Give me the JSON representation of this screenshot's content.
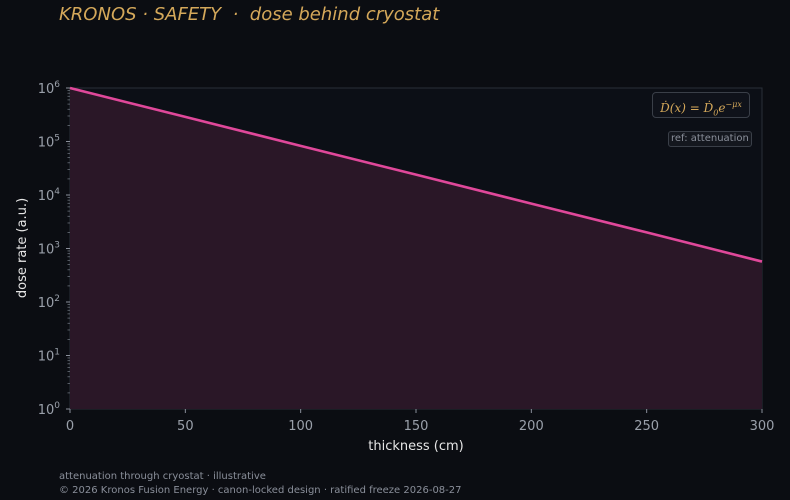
{
  "title": "KRONOS · SAFETY  ·  dose behind cryostat",
  "footer": {
    "line1": "attenuation through cryostat · illustrative",
    "line2": "© 2026 Kronos Fusion Energy · canon-locked design · ratified freeze 2026-08-27"
  },
  "annotations": {
    "equation": "Ḋ(x) = Ḋ₀e^(−μx)",
    "ref": "ref: attenuation"
  },
  "colors": {
    "background": "#0b0d12",
    "plot_background": "#0c0f16",
    "line": "#e0489a",
    "fill": "#2a1727",
    "title": "#d4a85a",
    "tick_text": "#9aa0aa",
    "axis_label": "#e6e6e6"
  },
  "chart_data": {
    "type": "area",
    "xlabel": "thickness (cm)",
    "ylabel": "dose rate (a.u.)",
    "x_scale": "linear",
    "y_scale": "log",
    "xlim": [
      0,
      300
    ],
    "ylim": [
      1,
      1000000
    ],
    "x_ticks": [
      0,
      50,
      100,
      150,
      200,
      250,
      300
    ],
    "y_ticks": [
      {
        "value": 1,
        "base": "10",
        "exp": "0"
      },
      {
        "value": 10,
        "base": "10",
        "exp": "1"
      },
      {
        "value": 100,
        "base": "10",
        "exp": "2"
      },
      {
        "value": 1000,
        "base": "10",
        "exp": "3"
      },
      {
        "value": 10000,
        "base": "10",
        "exp": "4"
      },
      {
        "value": 100000,
        "base": "10",
        "exp": "5"
      },
      {
        "value": 1000000,
        "base": "10",
        "exp": "6"
      }
    ],
    "grid": false,
    "series": [
      {
        "x": [
          0,
          50,
          100,
          150,
          200,
          250,
          300
        ],
        "y": [
          1000000,
          288000,
          83000,
          24000,
          6900,
          2000,
          570
        ]
      }
    ]
  }
}
